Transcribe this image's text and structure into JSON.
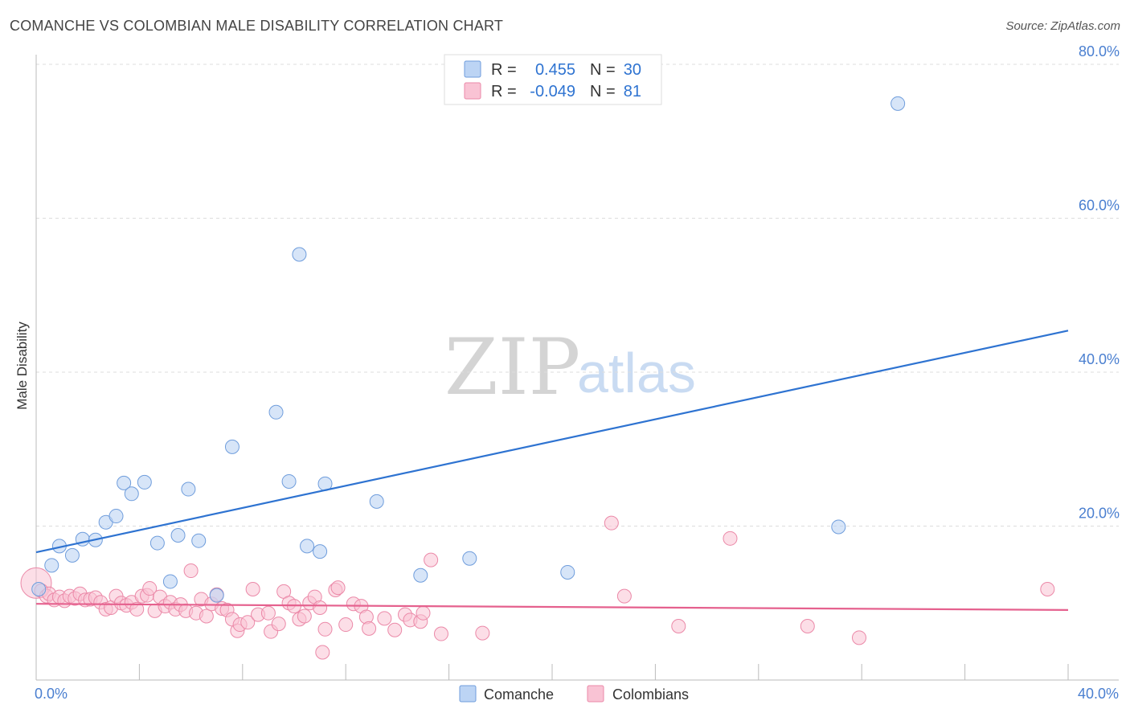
{
  "header": {
    "title": "COMANCHE VS COLOMBIAN MALE DISABILITY CORRELATION CHART",
    "source": "Source: ZipAtlas.com"
  },
  "watermark": {
    "zip": "ZIP",
    "atlas": "atlas"
  },
  "legend_top": {
    "row1": {
      "r_label": "R =",
      "r_value": "0.455",
      "n_label": "N =",
      "n_value": "30"
    },
    "row2": {
      "r_label": "R =",
      "r_value": "-0.049",
      "n_label": "N =",
      "n_value": "81"
    }
  },
  "legend_bottom": {
    "series1": "Comanche",
    "series2": "Colombians"
  },
  "colors": {
    "comanche_fill": "#bcd4f4",
    "comanche_stroke": "#6f9ddc",
    "comanche_line": "#2e73d1",
    "colombian_fill": "#f9c3d4",
    "colombian_stroke": "#eb89a8",
    "colombian_line": "#e5618e",
    "tick_text": "#4a7fd0",
    "grid": "#dddddd"
  },
  "chart_data": {
    "type": "scatter",
    "title": "COMANCHE VS COLOMBIAN MALE DISABILITY CORRELATION CHART",
    "xlabel": "",
    "ylabel": "Male Disability",
    "xlim": [
      0,
      40
    ],
    "ylim": [
      0,
      84
    ],
    "y_ticks": [
      20,
      40,
      60,
      80
    ],
    "y_tick_labels": [
      "20.0%",
      "40.0%",
      "60.0%",
      "80.0%"
    ],
    "x_tick_labels": [
      "0.0%",
      "40.0%"
    ],
    "grid": true,
    "legend_position": "top-center",
    "series": [
      {
        "name": "Comanche",
        "R": 0.455,
        "N": 30,
        "trend": {
          "x": [
            0,
            40
          ],
          "y": [
            16.6,
            45.4
          ]
        },
        "points": [
          [
            0.1,
            11.8
          ],
          [
            0.6,
            14.9
          ],
          [
            0.9,
            17.4
          ],
          [
            1.4,
            16.2
          ],
          [
            1.8,
            18.3
          ],
          [
            2.3,
            18.2
          ],
          [
            2.7,
            20.5
          ],
          [
            3.1,
            21.3
          ],
          [
            3.4,
            25.6
          ],
          [
            3.7,
            24.2
          ],
          [
            4.2,
            25.7
          ],
          [
            4.7,
            17.8
          ],
          [
            5.2,
            12.8
          ],
          [
            5.5,
            18.8
          ],
          [
            5.9,
            24.8
          ],
          [
            6.3,
            18.1
          ],
          [
            7.0,
            11.0
          ],
          [
            7.6,
            30.3
          ],
          [
            9.3,
            34.8
          ],
          [
            9.8,
            25.8
          ],
          [
            10.2,
            55.3
          ],
          [
            10.5,
            17.4
          ],
          [
            11.0,
            16.7
          ],
          [
            11.2,
            25.5
          ],
          [
            13.2,
            23.2
          ],
          [
            14.9,
            13.6
          ],
          [
            16.8,
            15.8
          ],
          [
            20.6,
            14.0
          ],
          [
            33.4,
            74.9
          ],
          [
            31.1,
            19.9
          ]
        ]
      },
      {
        "name": "Colombians",
        "R": -0.049,
        "N": 81,
        "trend": {
          "x": [
            0,
            40
          ],
          "y": [
            9.9,
            9.1
          ]
        },
        "points": [
          [
            0.0,
            12.6
          ],
          [
            0.2,
            11.6
          ],
          [
            0.4,
            10.9
          ],
          [
            0.5,
            11.2
          ],
          [
            0.7,
            10.4
          ],
          [
            0.9,
            10.8
          ],
          [
            1.1,
            10.3
          ],
          [
            1.3,
            10.9
          ],
          [
            1.5,
            10.6
          ],
          [
            1.7,
            11.2
          ],
          [
            1.9,
            10.4
          ],
          [
            2.1,
            10.5
          ],
          [
            2.3,
            10.7
          ],
          [
            2.5,
            10.1
          ],
          [
            2.7,
            9.2
          ],
          [
            2.9,
            9.4
          ],
          [
            3.1,
            10.9
          ],
          [
            3.3,
            10.0
          ],
          [
            3.5,
            9.7
          ],
          [
            3.7,
            10.1
          ],
          [
            3.9,
            9.2
          ],
          [
            4.1,
            10.9
          ],
          [
            4.3,
            11.0
          ],
          [
            4.4,
            11.9
          ],
          [
            4.6,
            9.0
          ],
          [
            4.8,
            10.8
          ],
          [
            5.0,
            9.6
          ],
          [
            5.2,
            10.1
          ],
          [
            5.4,
            9.2
          ],
          [
            5.6,
            9.8
          ],
          [
            5.8,
            9.0
          ],
          [
            6.0,
            14.2
          ],
          [
            6.2,
            8.7
          ],
          [
            6.4,
            10.5
          ],
          [
            6.6,
            8.3
          ],
          [
            6.8,
            9.9
          ],
          [
            7.0,
            11.1
          ],
          [
            7.2,
            9.3
          ],
          [
            7.4,
            9.1
          ],
          [
            7.6,
            7.9
          ],
          [
            7.8,
            6.4
          ],
          [
            7.9,
            7.2
          ],
          [
            8.2,
            7.5
          ],
          [
            8.4,
            11.8
          ],
          [
            8.6,
            8.5
          ],
          [
            9.0,
            8.7
          ],
          [
            9.1,
            6.3
          ],
          [
            9.4,
            7.3
          ],
          [
            9.6,
            11.5
          ],
          [
            9.8,
            10.0
          ],
          [
            10.0,
            9.6
          ],
          [
            10.2,
            7.9
          ],
          [
            10.4,
            8.3
          ],
          [
            10.6,
            10.0
          ],
          [
            10.8,
            10.8
          ],
          [
            11.0,
            9.4
          ],
          [
            11.1,
            3.6
          ],
          [
            11.2,
            6.6
          ],
          [
            11.6,
            11.7
          ],
          [
            11.7,
            12.0
          ],
          [
            12.0,
            7.2
          ],
          [
            12.3,
            9.9
          ],
          [
            12.6,
            9.6
          ],
          [
            12.8,
            8.2
          ],
          [
            12.9,
            6.7
          ],
          [
            13.5,
            8.0
          ],
          [
            13.9,
            6.5
          ],
          [
            14.3,
            8.5
          ],
          [
            14.5,
            7.8
          ],
          [
            14.9,
            7.6
          ],
          [
            15.0,
            8.7
          ],
          [
            15.3,
            15.6
          ],
          [
            15.7,
            6.0
          ],
          [
            17.3,
            6.1
          ],
          [
            22.3,
            20.4
          ],
          [
            22.8,
            10.9
          ],
          [
            24.9,
            7.0
          ],
          [
            26.9,
            18.4
          ],
          [
            29.9,
            7.0
          ],
          [
            31.9,
            5.5
          ],
          [
            39.2,
            11.8
          ]
        ]
      }
    ]
  }
}
